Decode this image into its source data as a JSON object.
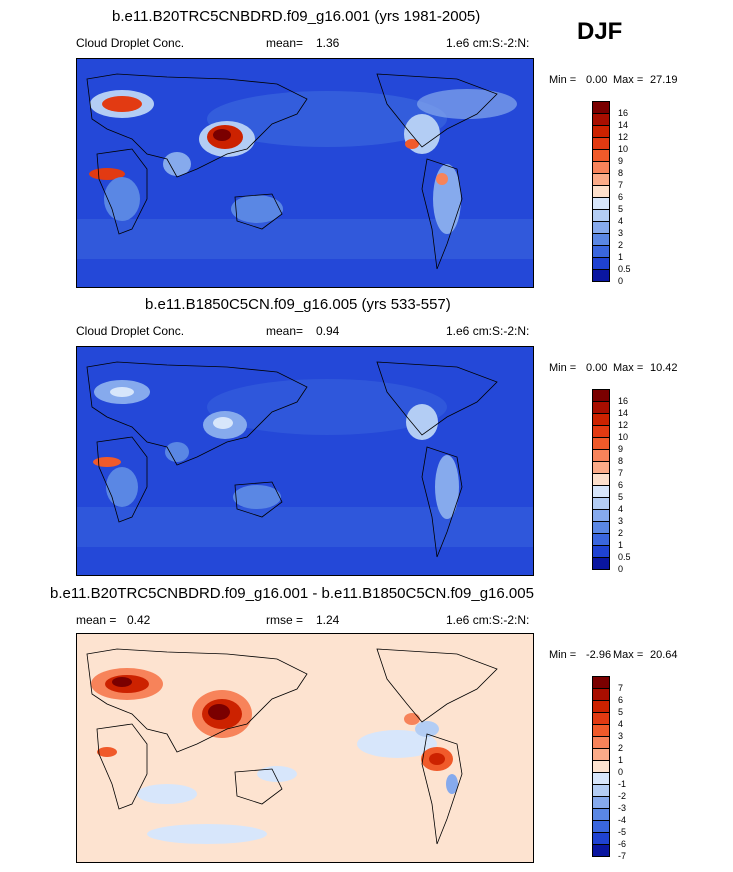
{
  "season": "DJF",
  "colors": {
    "ocean": "#2448d8",
    "ocean_deep": "#1d3fc9",
    "diff_bg": "#fde3d0",
    "coast": "#000000"
  },
  "panels": [
    {
      "title": "b.e11.B20TRC5CNBDRD.f09_g16.001 (yrs 1981-2005)",
      "variable": "Cloud Droplet Conc.",
      "mean_label": "mean=",
      "mean_value": "1.36",
      "units": "1.e6 cm:S:-2:N:",
      "min_label": "Min =",
      "min_value": "0.00",
      "max_label": "Max =",
      "max_value": "27.19"
    },
    {
      "title": "b.e11.B1850C5CN.f09_g16.005 (yrs 533-557)",
      "variable": "Cloud Droplet Conc.",
      "mean_label": "mean=",
      "mean_value": "0.94",
      "units": "1.e6 cm:S:-2:N:",
      "min_label": "Min =",
      "min_value": "0.00",
      "max_label": "Max =",
      "max_value": "10.42"
    },
    {
      "title": "b.e11.B20TRC5CNBDRD.f09_g16.001 - b.e11.B1850C5CN.f09_g16.005",
      "mean_label": "mean =",
      "mean_value": "0.42",
      "rmse_label": "rmse =",
      "rmse_value": "1.24",
      "units": "1.e6 cm:S:-2:N:",
      "min_label": "Min =",
      "min_value": "-2.96",
      "max_label": "Max =",
      "max_value": "20.64"
    }
  ],
  "chart_data": [
    {
      "type": "heatmap",
      "title": "b.e11.B20TRC5CNBDRD.f09_g16.001 (yrs 1981-2005)",
      "colorbar": {
        "levels": [
          "16",
          "14",
          "12",
          "10",
          "9",
          "8",
          "7",
          "6",
          "5",
          "4",
          "3",
          "2",
          "1",
          "0.5",
          "0"
        ],
        "colors": [
          "#7a0000",
          "#a80e00",
          "#cc2200",
          "#e23a12",
          "#f05a2a",
          "#f7835a",
          "#fbab88",
          "#fde0cc",
          "#d7e6fb",
          "#b3cdf4",
          "#86aaed",
          "#5a87e4",
          "#3a66de",
          "#1f42d2",
          "#0a16a0"
        ]
      }
    },
    {
      "type": "heatmap",
      "title": "b.e11.B1850C5CN.f09_g16.005 (yrs 533-557)",
      "colorbar": {
        "levels": [
          "16",
          "14",
          "12",
          "10",
          "9",
          "8",
          "7",
          "6",
          "5",
          "4",
          "3",
          "2",
          "1",
          "0.5",
          "0"
        ],
        "colors": [
          "#7a0000",
          "#a80e00",
          "#cc2200",
          "#e23a12",
          "#f05a2a",
          "#f7835a",
          "#fbab88",
          "#fde0cc",
          "#d7e6fb",
          "#b3cdf4",
          "#86aaed",
          "#5a87e4",
          "#3a66de",
          "#1f42d2",
          "#0a16a0"
        ]
      }
    },
    {
      "type": "heatmap",
      "title": "b.e11.B20TRC5CNBDRD.f09_g16.001 - b.e11.B1850C5CN.f09_g16.005",
      "colorbar": {
        "levels": [
          "7",
          "6",
          "5",
          "4",
          "3",
          "2",
          "1",
          "0",
          "-1",
          "-2",
          "-3",
          "-4",
          "-5",
          "-6",
          "-7"
        ],
        "colors": [
          "#7a0000",
          "#a80e00",
          "#cc2200",
          "#e23a12",
          "#f05a2a",
          "#f7835a",
          "#fbab88",
          "#fde3d0",
          "#d7e6fb",
          "#b3cdf4",
          "#86aaed",
          "#5a87e4",
          "#3a66de",
          "#1f42d2",
          "#0a16a0"
        ]
      }
    }
  ]
}
